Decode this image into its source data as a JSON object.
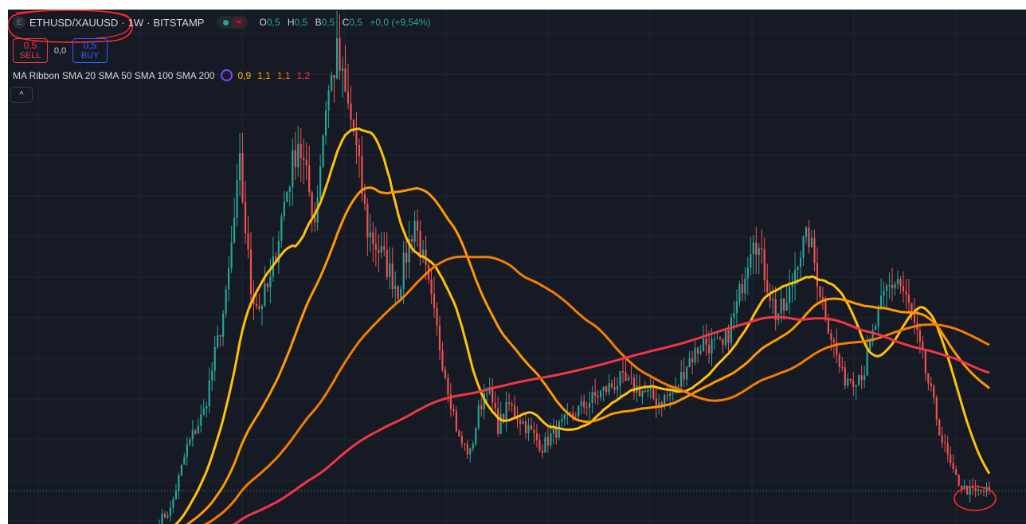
{
  "header": {
    "symbol_icon_letter": "E",
    "symbol": "ETHUSD/XAUUSD",
    "separator": "·",
    "interval": "1W",
    "exchange": "BITSTAMP",
    "wave_glyph": "≈",
    "ohlc": {
      "o_label": "O",
      "o_value": "0,5",
      "h_label": "H",
      "h_value": "0,5",
      "b_label": "B",
      "b_value": "0,5",
      "c_label": "C",
      "c_value": "0,5",
      "change": "+0,0 (+9,54%)"
    }
  },
  "trade": {
    "sell_price": "0,5",
    "sell_label": "SELL",
    "spread": "0,0",
    "buy_price": "0,5",
    "buy_label": "BUY"
  },
  "indicator": {
    "label": "MA Ribbon SMA 20 SMA 50 SMA 100 SMA 200",
    "values": [
      "0,9",
      "1,1",
      "1,1",
      "1,2"
    ]
  },
  "collapse_glyph": "^",
  "chart_data": {
    "type": "candlestick",
    "title": "ETHUSD/XAUUSD · 1W · BITSTAMP",
    "colors": {
      "background": "#161a25",
      "grid": "#222632",
      "up": "#26a69a",
      "down": "#ef5350",
      "sma20": "#ffc107",
      "sma50": "#ff9800",
      "sma100": "#f57c00",
      "sma200": "#f23645",
      "annotation": "#ff2a2a"
    },
    "y_range": [
      0.38,
      1.85
    ],
    "price_line": 0.475,
    "candle_count": 300,
    "key_closes": [
      {
        "i": 0,
        "v": 0.39
      },
      {
        "i": 4,
        "v": 0.42
      },
      {
        "i": 10,
        "v": 0.6
      },
      {
        "i": 16,
        "v": 0.7
      },
      {
        "i": 24,
        "v": 1.02
      },
      {
        "i": 29,
        "v": 1.4
      },
      {
        "i": 33,
        "v": 1.05
      },
      {
        "i": 36,
        "v": 1.0
      },
      {
        "i": 40,
        "v": 1.07
      },
      {
        "i": 45,
        "v": 1.3
      },
      {
        "i": 50,
        "v": 1.48
      },
      {
        "i": 56,
        "v": 1.25
      },
      {
        "i": 60,
        "v": 1.58
      },
      {
        "i": 64,
        "v": 1.72
      },
      {
        "i": 67,
        "v": 1.6
      },
      {
        "i": 70,
        "v": 1.5
      },
      {
        "i": 75,
        "v": 1.22
      },
      {
        "i": 80,
        "v": 1.15
      },
      {
        "i": 86,
        "v": 1.05
      },
      {
        "i": 92,
        "v": 1.25
      },
      {
        "i": 97,
        "v": 1.05
      },
      {
        "i": 102,
        "v": 0.85
      },
      {
        "i": 108,
        "v": 0.62
      },
      {
        "i": 112,
        "v": 0.58
      },
      {
        "i": 115,
        "v": 0.7
      },
      {
        "i": 118,
        "v": 0.78
      },
      {
        "i": 122,
        "v": 0.66
      },
      {
        "i": 126,
        "v": 0.72
      },
      {
        "i": 130,
        "v": 0.68
      },
      {
        "i": 134,
        "v": 0.64
      },
      {
        "i": 138,
        "v": 0.6
      },
      {
        "i": 142,
        "v": 0.64
      },
      {
        "i": 150,
        "v": 0.7
      },
      {
        "i": 158,
        "v": 0.75
      },
      {
        "i": 166,
        "v": 0.79
      },
      {
        "i": 174,
        "v": 0.76
      },
      {
        "i": 180,
        "v": 0.73
      },
      {
        "i": 186,
        "v": 0.76
      },
      {
        "i": 190,
        "v": 0.84
      },
      {
        "i": 196,
        "v": 0.9
      },
      {
        "i": 203,
        "v": 0.88
      },
      {
        "i": 208,
        "v": 1.0
      },
      {
        "i": 214,
        "v": 1.22
      },
      {
        "i": 218,
        "v": 1.1
      },
      {
        "i": 222,
        "v": 0.98
      },
      {
        "i": 226,
        "v": 1.0
      },
      {
        "i": 230,
        "v": 1.15
      },
      {
        "i": 234,
        "v": 1.2
      },
      {
        "i": 238,
        "v": 1.05
      },
      {
        "i": 242,
        "v": 0.92
      },
      {
        "i": 246,
        "v": 0.8
      },
      {
        "i": 250,
        "v": 0.8
      },
      {
        "i": 254,
        "v": 0.82
      },
      {
        "i": 258,
        "v": 0.95
      },
      {
        "i": 262,
        "v": 1.05
      },
      {
        "i": 266,
        "v": 1.08
      },
      {
        "i": 270,
        "v": 1.0
      },
      {
        "i": 274,
        "v": 0.88
      },
      {
        "i": 278,
        "v": 0.75
      },
      {
        "i": 282,
        "v": 0.62
      },
      {
        "i": 286,
        "v": 0.52
      },
      {
        "i": 290,
        "v": 0.48
      },
      {
        "i": 294,
        "v": 0.47
      },
      {
        "i": 299,
        "v": 0.475
      }
    ],
    "ma_periods": [
      20,
      50,
      100,
      200
    ],
    "ma_names": [
      "SMA 20",
      "SMA 50",
      "SMA 100",
      "SMA 200"
    ]
  }
}
